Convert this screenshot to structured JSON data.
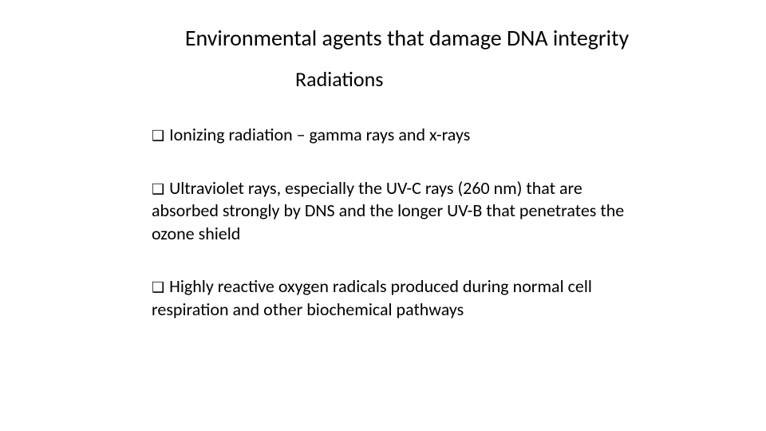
{
  "slide": {
    "title": "Environmental  agents  that damage DNA integrity",
    "subtitle": "Radiations",
    "bullets": [
      "Ionizing radiation – gamma rays  and x-rays",
      "Ultraviolet rays, especially the UV-C rays (260 nm) that are absorbed  strongly by DNS and the longer UV-B that penetrates the ozone shield",
      "Highly reactive oxygen radicals produced during normal cell respiration and other biochemical pathways"
    ],
    "bullet_marker": "❑"
  },
  "styling": {
    "background_color": "#ffffff",
    "text_color": "#000000",
    "title_fontsize": 28,
    "subtitle_fontsize": 26,
    "body_fontsize": 22,
    "font_family": "Calibri"
  }
}
